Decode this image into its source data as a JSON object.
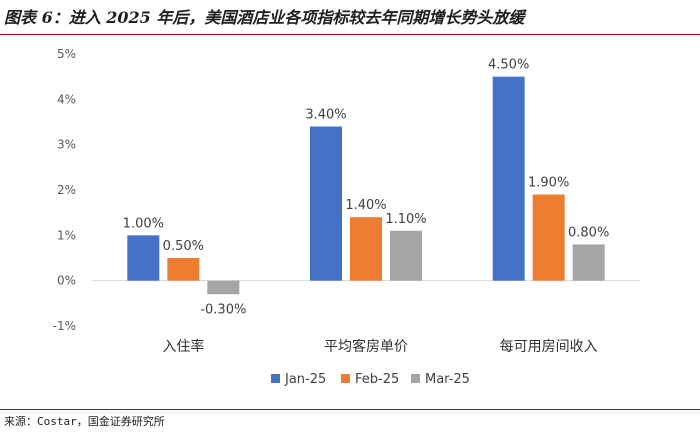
{
  "figure": {
    "title": "图表 6：进入 2025 年后，美国酒店业各项指标较去年同期增长势头放缓",
    "source": "来源：Costar，国金证券研究所"
  },
  "chart_data": {
    "type": "bar",
    "title": "",
    "xlabel": "",
    "ylabel": "",
    "categories": [
      "入住率",
      "平均客房单价",
      "每可用房间收入"
    ],
    "series": [
      {
        "name": "Jan-25",
        "values": [
          1.0,
          3.4,
          4.5
        ],
        "labels": [
          "1.00%",
          "3.40%",
          "4.50%"
        ],
        "color": "#4472c4"
      },
      {
        "name": "Feb-25",
        "values": [
          0.5,
          1.4,
          1.9
        ],
        "labels": [
          "0.50%",
          "1.40%",
          "1.90%"
        ],
        "color": "#ed7d31"
      },
      {
        "name": "Mar-25",
        "values": [
          -0.3,
          1.1,
          0.8
        ],
        "labels": [
          "-0.30%",
          "1.10%",
          "0.80%"
        ],
        "color": "#a5a5a5"
      }
    ],
    "yticks": [
      5,
      4,
      3,
      2,
      1,
      0,
      -1
    ],
    "ytick_labels": [
      "5%",
      "4%",
      "3%",
      "2%",
      "1%",
      "0%",
      "-1%"
    ],
    "ylim": [
      -1,
      5
    ],
    "unit": "%",
    "grid": false,
    "legend_position": "bottom"
  }
}
